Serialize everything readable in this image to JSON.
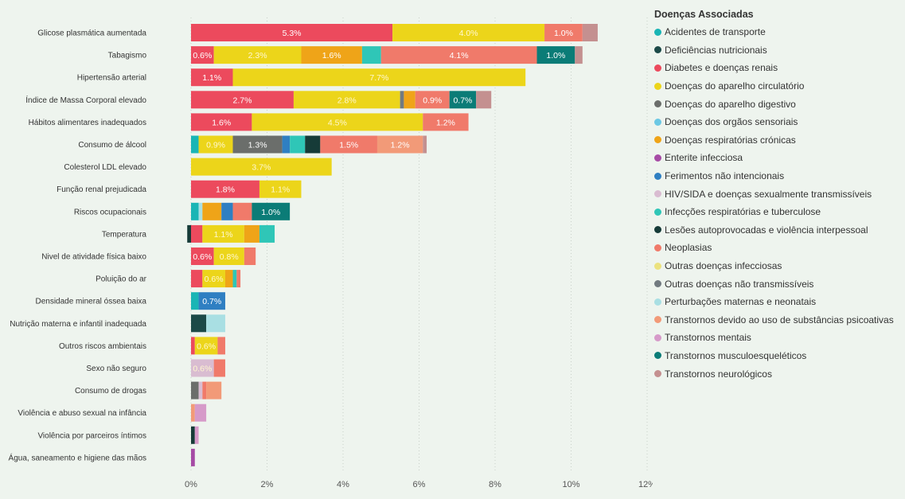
{
  "chart_data": {
    "type": "bar",
    "orientation": "horizontal",
    "stacked": true,
    "xlim": [
      0,
      12
    ],
    "xticks": [
      0,
      2,
      4,
      6,
      8,
      10,
      12
    ],
    "tick_suffix": "%",
    "grid": "vertical dotted",
    "legend": {
      "title": "Doenças Associadas",
      "position": "right",
      "items": [
        {
          "name": "Acidentes de transporte",
          "color": "#1ab5b5"
        },
        {
          "name": "Deficiências nutricionais",
          "color": "#1c4a48"
        },
        {
          "name": "Diabetes e doenças renais",
          "color": "#ec4a5d"
        },
        {
          "name": "Doenças do aparelho circulatório",
          "color": "#ecd51a"
        },
        {
          "name": "Doenças do aparelho digestivo",
          "color": "#6b6e6b"
        },
        {
          "name": "Doenças dos orgãos sensoriais",
          "color": "#6cc8e4"
        },
        {
          "name": "Doenças respiratórias crónicas",
          "color": "#efa418"
        },
        {
          "name": "Enterite infecciosa",
          "color": "#a64ba5"
        },
        {
          "name": "Ferimentos não intencionais",
          "color": "#2f7fc2"
        },
        {
          "name": "HIV/SIDA e doenças sexualmente transmissíveis",
          "color": "#d9bcd1"
        },
        {
          "name": "Infecções respiratórias e tuberculose",
          "color": "#2fc6b7"
        },
        {
          "name": "Lesões autoprovocadas e violência interpessoal",
          "color": "#163b38"
        },
        {
          "name": "Neoplasias",
          "color": "#f07a6a"
        },
        {
          "name": "Outras doenças infecciosas",
          "color": "#ebe27e"
        },
        {
          "name": "Outras doenças não transmissíveis",
          "color": "#727a80"
        },
        {
          "name": "Perturbações maternas e neonatais",
          "color": "#a9dfe3"
        },
        {
          "name": "Transtornos devido ao uso de substâncias psicoativas",
          "color": "#f29a78"
        },
        {
          "name": "Transtornos mentais",
          "color": "#d69ac9"
        },
        {
          "name": "Transtornos musculoesqueléticos",
          "color": "#0b7c77"
        },
        {
          "name": "Transtornos neurológicos",
          "color": "#c49090"
        }
      ]
    },
    "rows": [
      {
        "category": "Glicose plasmática aumentada",
        "segments": [
          {
            "series": 2,
            "value": 5.3,
            "label": "5.3%"
          },
          {
            "series": 3,
            "value": 4.0,
            "label": "4.0%"
          },
          {
            "series": 12,
            "value": 1.0,
            "label": "1.0%"
          },
          {
            "series": 19,
            "value": 0.4
          }
        ]
      },
      {
        "category": "Tabagismo",
        "segments": [
          {
            "series": 2,
            "value": 0.6,
            "label": "0.6%"
          },
          {
            "series": 3,
            "value": 2.3,
            "label": "2.3%"
          },
          {
            "series": 6,
            "value": 1.6,
            "label": "1.6%"
          },
          {
            "series": 10,
            "value": 0.5
          },
          {
            "series": 12,
            "value": 4.1,
            "label": "4.1%"
          },
          {
            "series": 18,
            "value": 1.0,
            "label": "1.0%"
          },
          {
            "series": 19,
            "value": 0.2
          }
        ]
      },
      {
        "category": "Hipertensão arterial",
        "segments": [
          {
            "series": 2,
            "value": 1.1,
            "label": "1.1%"
          },
          {
            "series": 3,
            "value": 7.7,
            "label": "7.7%"
          }
        ]
      },
      {
        "category": "Índice de Massa Corporal elevado",
        "segments": [
          {
            "series": 2,
            "value": 2.7,
            "label": "2.7%"
          },
          {
            "series": 3,
            "value": 2.8,
            "label": "2.8%"
          },
          {
            "series": 14,
            "value": 0.1
          },
          {
            "series": 6,
            "value": 0.3
          },
          {
            "series": 12,
            "value": 0.9,
            "label": "0.9%"
          },
          {
            "series": 18,
            "value": 0.7,
            "label": "0.7%"
          },
          {
            "series": 19,
            "value": 0.4
          }
        ]
      },
      {
        "category": "Hábitos alimentares inadequados",
        "segments": [
          {
            "series": 2,
            "value": 1.6,
            "label": "1.6%"
          },
          {
            "series": 3,
            "value": 4.5,
            "label": "4.5%"
          },
          {
            "series": 12,
            "value": 1.2,
            "label": "1.2%"
          }
        ]
      },
      {
        "category": "Consumo de álcool",
        "segments": [
          {
            "series": 0,
            "value": 0.2
          },
          {
            "series": 3,
            "value": 0.9,
            "label": "0.9%"
          },
          {
            "series": 4,
            "value": 1.3,
            "label": "1.3%"
          },
          {
            "series": 8,
            "value": 0.2
          },
          {
            "series": 10,
            "value": 0.4
          },
          {
            "series": 11,
            "value": 0.4
          },
          {
            "series": 12,
            "value": 1.5,
            "label": "1.5%"
          },
          {
            "series": 16,
            "value": 1.2,
            "label": "1.2%"
          },
          {
            "series": 19,
            "value": 0.1
          }
        ]
      },
      {
        "category": "Colesterol LDL elevado",
        "segments": [
          {
            "series": 3,
            "value": 3.7,
            "label": "3.7%"
          }
        ]
      },
      {
        "category": "Função renal prejudicada",
        "segments": [
          {
            "series": 2,
            "value": 1.8,
            "label": "1.8%"
          },
          {
            "series": 3,
            "value": 1.1,
            "label": "1.1%"
          }
        ]
      },
      {
        "category": "Riscos ocupacionais",
        "segments": [
          {
            "series": 0,
            "value": 0.2
          },
          {
            "series": 15,
            "value": 0.1
          },
          {
            "series": 6,
            "value": 0.5
          },
          {
            "series": 8,
            "value": 0.3
          },
          {
            "series": 12,
            "value": 0.5
          },
          {
            "series": 18,
            "value": 1.0,
            "label": "1.0%"
          }
        ]
      },
      {
        "category": "Temperatura",
        "segments": [
          {
            "series": 11,
            "value": 0.1,
            "start": -0.1
          },
          {
            "series": 2,
            "value": 0.3
          },
          {
            "series": 3,
            "value": 1.1,
            "label": "1.1%"
          },
          {
            "series": 6,
            "value": 0.4
          },
          {
            "series": 10,
            "value": 0.4
          }
        ]
      },
      {
        "category": "Nivel de atividade física baixo",
        "segments": [
          {
            "series": 2,
            "value": 0.6,
            "label": "0.6%"
          },
          {
            "series": 3,
            "value": 0.8,
            "label": "0.8%"
          },
          {
            "series": 12,
            "value": 0.3
          }
        ]
      },
      {
        "category": "Poluição do ar",
        "segments": [
          {
            "series": 2,
            "value": 0.3
          },
          {
            "series": 3,
            "value": 0.6,
            "label": "0.6%"
          },
          {
            "series": 6,
            "value": 0.2
          },
          {
            "series": 10,
            "value": 0.1
          },
          {
            "series": 12,
            "value": 0.1
          }
        ]
      },
      {
        "category": "Densidade mineral óssea baixa",
        "segments": [
          {
            "series": 0,
            "value": 0.2
          },
          {
            "series": 8,
            "value": 0.7,
            "label": "0.7%"
          }
        ]
      },
      {
        "category": "Nutrição materna e infantil inadequada",
        "segments": [
          {
            "series": 1,
            "value": 0.4
          },
          {
            "series": 15,
            "value": 0.5
          }
        ]
      },
      {
        "category": "Outros riscos ambientais",
        "segments": [
          {
            "series": 2,
            "value": 0.1
          },
          {
            "series": 3,
            "value": 0.6,
            "label": "0.6%"
          },
          {
            "series": 12,
            "value": 0.2
          }
        ]
      },
      {
        "category": "Sexo não seguro",
        "segments": [
          {
            "series": 9,
            "value": 0.6,
            "label": "0.6%"
          },
          {
            "series": 12,
            "value": 0.3
          }
        ]
      },
      {
        "category": "Consumo de drogas",
        "segments": [
          {
            "series": 4,
            "value": 0.2
          },
          {
            "series": 9,
            "value": 0.1
          },
          {
            "series": 12,
            "value": 0.1
          },
          {
            "series": 16,
            "value": 0.4
          }
        ]
      },
      {
        "category": "Violência e abuso sexual na infância",
        "segments": [
          {
            "series": 16,
            "value": 0.1
          },
          {
            "series": 17,
            "value": 0.3
          }
        ]
      },
      {
        "category": "Violência por parceiros íntimos",
        "segments": [
          {
            "series": 11,
            "value": 0.1
          },
          {
            "series": 17,
            "value": 0.1
          }
        ]
      },
      {
        "category": "Água, saneamento e higiene das mãos",
        "segments": [
          {
            "series": 7,
            "value": 0.1
          }
        ]
      }
    ]
  }
}
